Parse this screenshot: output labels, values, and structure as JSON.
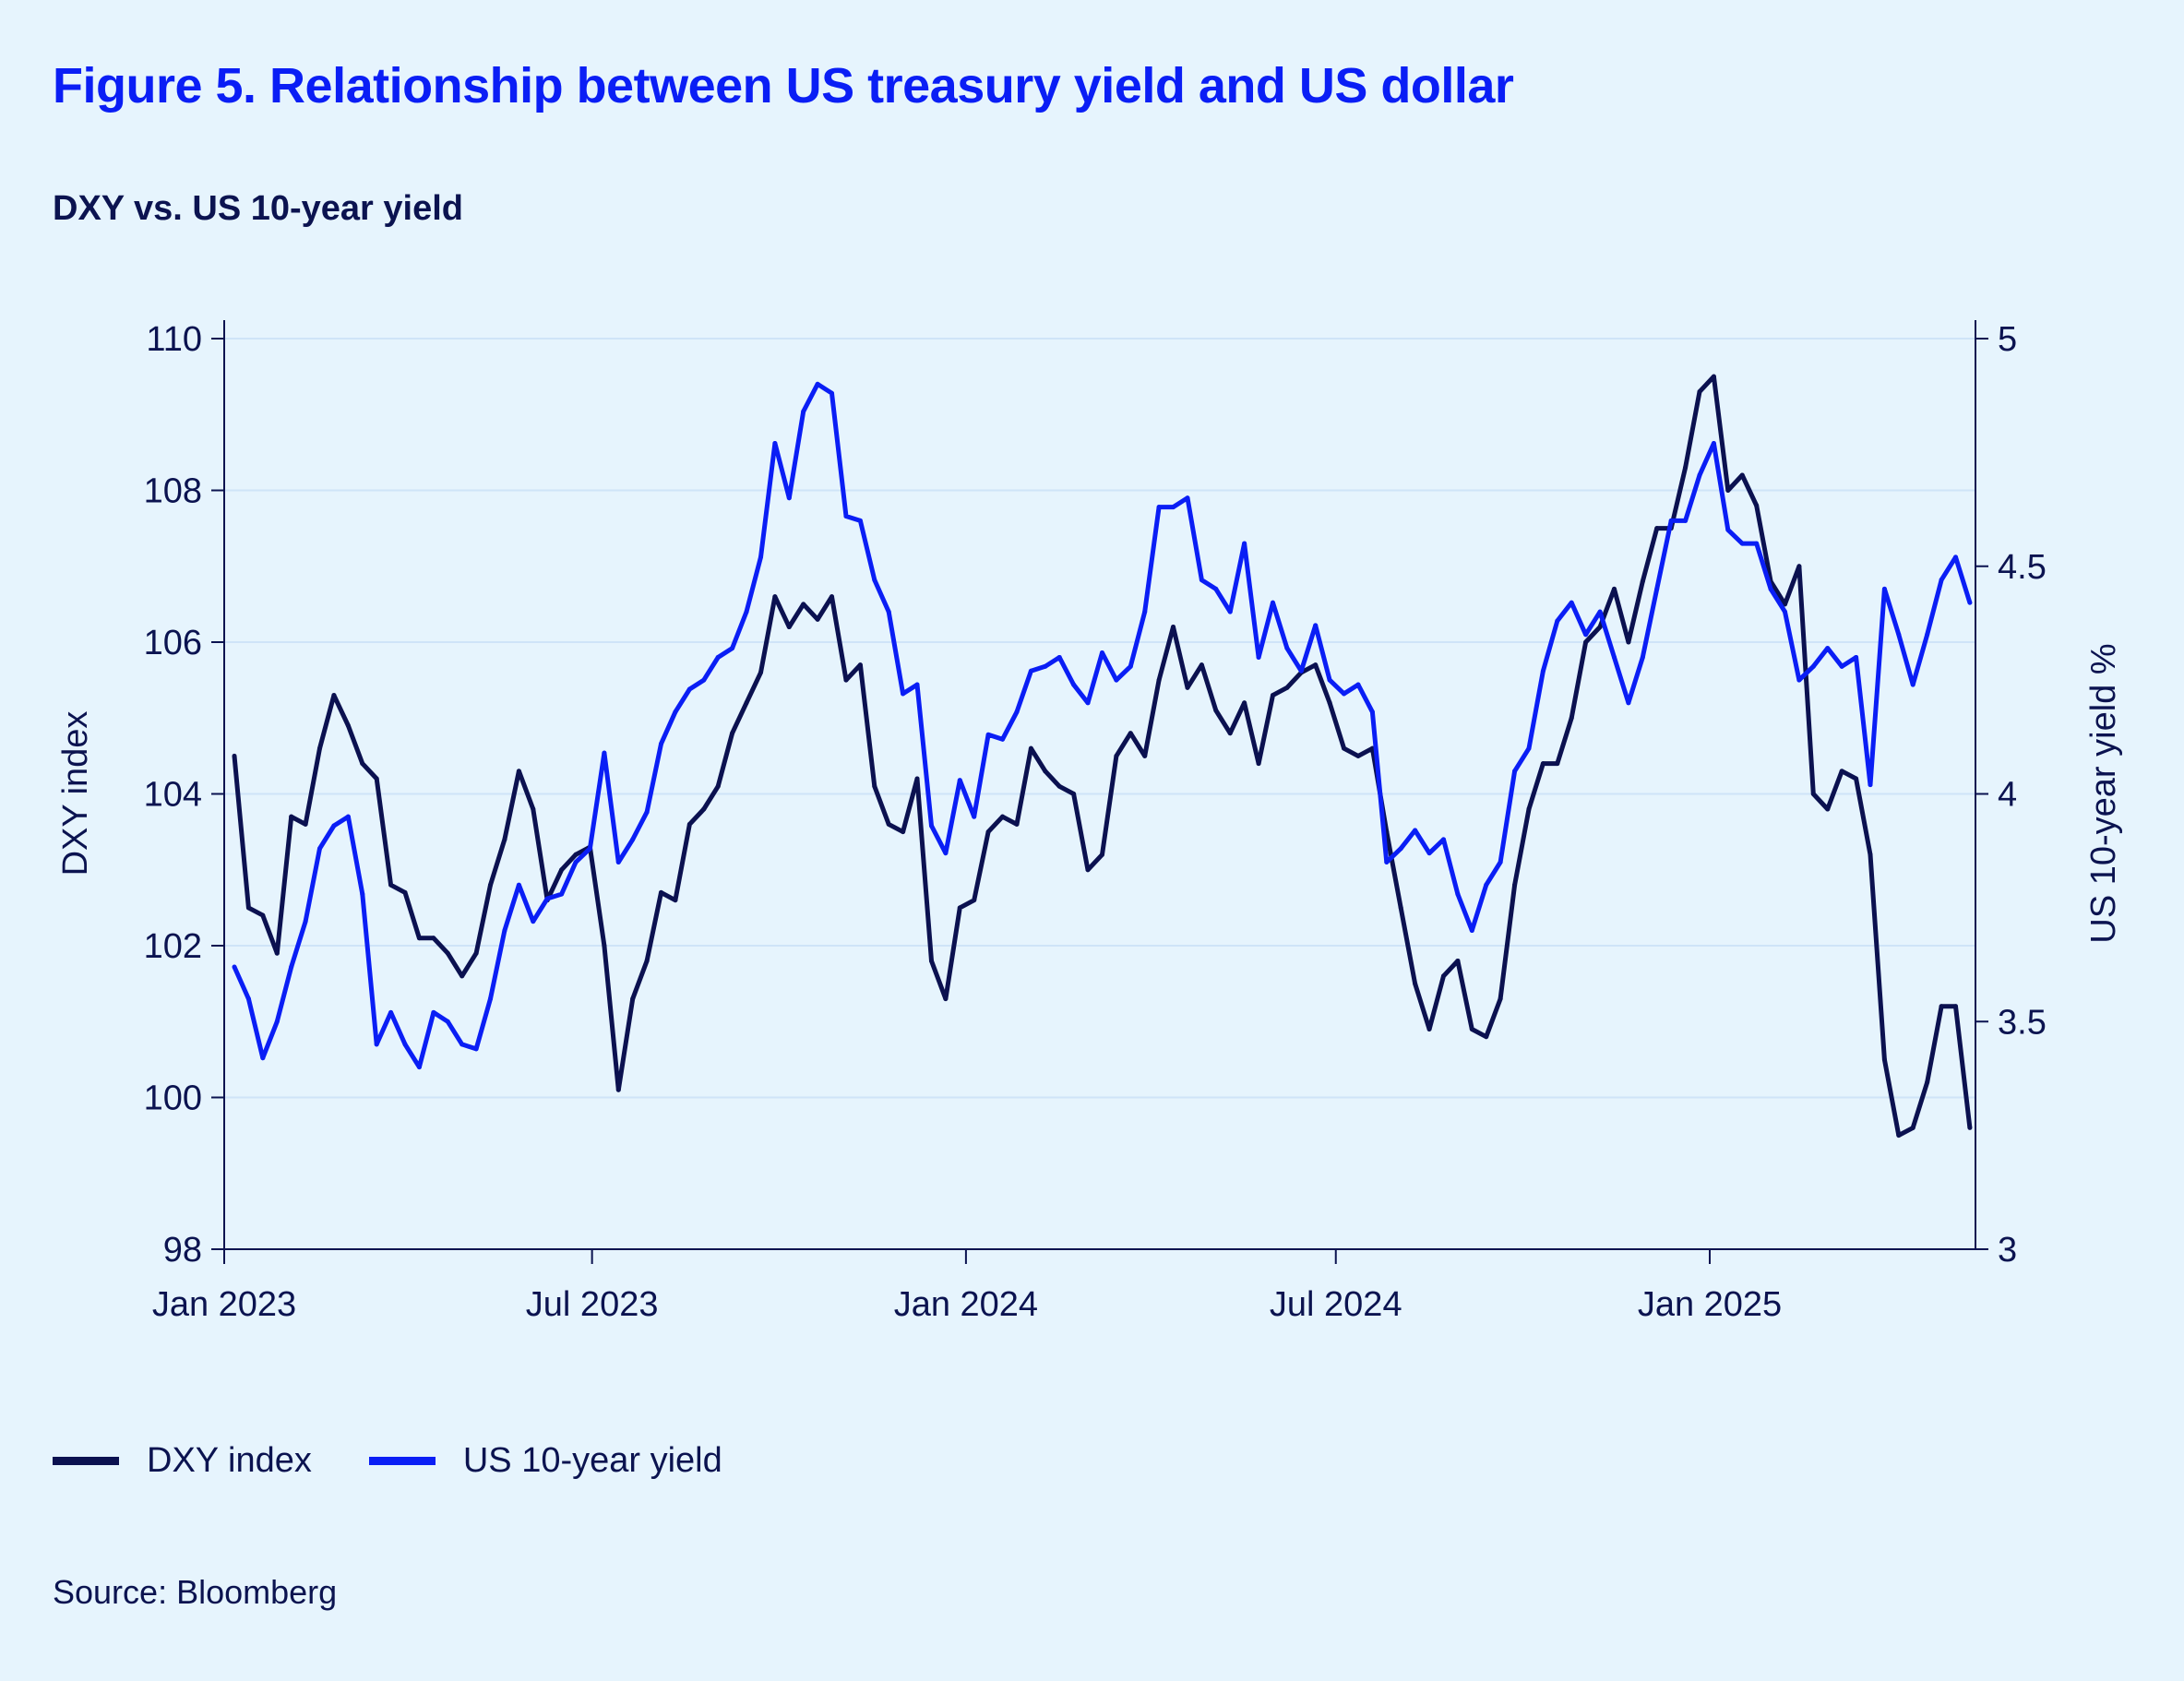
{
  "title": "Figure 5. Relationship between US treasury yield and US dollar",
  "subtitle": "DXY vs. US 10-year yield",
  "source": "Source: Bloomberg",
  "colors": {
    "background": "#e6f4fd",
    "dxy": "#0b1150",
    "yield": "#0a1ef5",
    "grid": "#cfe4f8",
    "axis": "#0b1350"
  },
  "chart_data": {
    "type": "line",
    "xlabel": "",
    "ylabel_left": "DXY index",
    "ylabel_right": "US 10-year yield %",
    "ylim_left": [
      98,
      110
    ],
    "ylim_right": [
      3,
      5
    ],
    "yticks_left": [
      "98",
      "100",
      "102",
      "104",
      "106",
      "108",
      "110"
    ],
    "yticks_right": [
      "3",
      "3.5",
      "4",
      "4.5",
      "5"
    ],
    "xticks": [
      {
        "date": "2023-01-01",
        "label": "Jan 2023"
      },
      {
        "date": "2023-07-01",
        "label": "Jul 2023"
      },
      {
        "date": "2024-01-01",
        "label": "Jan 2024"
      },
      {
        "date": "2024-07-01",
        "label": "Jul 2024"
      },
      {
        "date": "2025-01-01",
        "label": "Jan 2025"
      }
    ],
    "grid": true,
    "legend_position": "bottom-left",
    "x": [
      "2023-01-06",
      "2023-01-13",
      "2023-01-20",
      "2023-01-27",
      "2023-02-03",
      "2023-02-10",
      "2023-02-17",
      "2023-02-24",
      "2023-03-03",
      "2023-03-10",
      "2023-03-17",
      "2023-03-24",
      "2023-03-31",
      "2023-04-07",
      "2023-04-14",
      "2023-04-21",
      "2023-04-28",
      "2023-05-05",
      "2023-05-12",
      "2023-05-19",
      "2023-05-26",
      "2023-06-02",
      "2023-06-09",
      "2023-06-16",
      "2023-06-23",
      "2023-06-30",
      "2023-07-07",
      "2023-07-14",
      "2023-07-21",
      "2023-07-28",
      "2023-08-04",
      "2023-08-11",
      "2023-08-18",
      "2023-08-25",
      "2023-09-01",
      "2023-09-08",
      "2023-09-15",
      "2023-09-22",
      "2023-09-29",
      "2023-10-06",
      "2023-10-13",
      "2023-10-20",
      "2023-10-27",
      "2023-11-03",
      "2023-11-10",
      "2023-11-17",
      "2023-11-24",
      "2023-12-01",
      "2023-12-08",
      "2023-12-15",
      "2023-12-22",
      "2023-12-29",
      "2024-01-05",
      "2024-01-12",
      "2024-01-19",
      "2024-01-26",
      "2024-02-02",
      "2024-02-09",
      "2024-02-16",
      "2024-02-23",
      "2024-03-01",
      "2024-03-08",
      "2024-03-15",
      "2024-03-22",
      "2024-03-29",
      "2024-04-05",
      "2024-04-12",
      "2024-04-19",
      "2024-04-26",
      "2024-05-03",
      "2024-05-10",
      "2024-05-17",
      "2024-05-24",
      "2024-05-31",
      "2024-06-07",
      "2024-06-14",
      "2024-06-21",
      "2024-06-28",
      "2024-07-05",
      "2024-07-12",
      "2024-07-19",
      "2024-07-26",
      "2024-08-02",
      "2024-08-09",
      "2024-08-16",
      "2024-08-23",
      "2024-08-30",
      "2024-09-06",
      "2024-09-13",
      "2024-09-20",
      "2024-09-27",
      "2024-10-04",
      "2024-10-11",
      "2024-10-18",
      "2024-10-25",
      "2024-11-01",
      "2024-11-08",
      "2024-11-15",
      "2024-11-22",
      "2024-11-29",
      "2024-12-06",
      "2024-12-13",
      "2024-12-20",
      "2024-12-27",
      "2025-01-03",
      "2025-01-10",
      "2025-01-17",
      "2025-01-24",
      "2025-01-31",
      "2025-02-07",
      "2025-02-14",
      "2025-02-21",
      "2025-02-28",
      "2025-03-07",
      "2025-03-14",
      "2025-03-21",
      "2025-03-28",
      "2025-04-04",
      "2025-04-11",
      "2025-04-18",
      "2025-04-25",
      "2025-05-02",
      "2025-05-09"
    ],
    "series": [
      {
        "name": "DXY index",
        "axis": "left",
        "values": [
          104.5,
          102.5,
          102.4,
          101.9,
          103.7,
          103.6,
          104.6,
          105.3,
          104.9,
          104.4,
          104.2,
          102.8,
          102.7,
          102.1,
          102.1,
          101.9,
          101.6,
          101.9,
          102.8,
          103.4,
          104.3,
          103.8,
          102.6,
          103.0,
          103.2,
          103.3,
          102.0,
          100.1,
          101.3,
          101.8,
          102.7,
          102.6,
          103.6,
          103.8,
          104.1,
          104.8,
          105.2,
          105.6,
          106.6,
          106.2,
          106.5,
          106.3,
          106.6,
          105.5,
          105.7,
          104.1,
          103.6,
          103.5,
          104.2,
          101.8,
          101.3,
          102.5,
          102.6,
          103.5,
          103.7,
          103.6,
          104.6,
          104.3,
          104.1,
          104.0,
          103.0,
          103.2,
          104.5,
          104.8,
          104.5,
          105.5,
          106.2,
          105.4,
          105.7,
          105.1,
          104.8,
          105.2,
          104.4,
          105.3,
          105.4,
          105.6,
          105.7,
          105.2,
          104.6,
          104.5,
          104.6,
          103.5,
          102.5,
          101.5,
          100.9,
          101.6,
          101.8,
          100.9,
          100.8,
          101.3,
          102.8,
          103.8,
          104.4,
          104.4,
          105.0,
          106.0,
          106.2,
          106.7,
          106.0,
          106.8,
          107.5,
          107.5,
          108.3,
          109.3,
          109.5,
          108.0,
          108.2,
          107.8,
          106.8,
          106.5,
          107.0,
          104.0,
          103.8,
          104.3,
          104.2,
          103.2,
          100.5,
          99.5,
          99.6,
          100.2,
          101.2,
          101.2,
          99.6
        ]
      },
      {
        "name": "US 10-year yield",
        "axis": "right",
        "values": [
          3.62,
          3.55,
          3.42,
          3.5,
          3.62,
          3.72,
          3.88,
          3.93,
          3.95,
          3.78,
          3.45,
          3.52,
          3.45,
          3.4,
          3.52,
          3.5,
          3.45,
          3.44,
          3.55,
          3.7,
          3.8,
          3.72,
          3.77,
          3.78,
          3.85,
          3.88,
          4.09,
          3.85,
          3.9,
          3.96,
          4.11,
          4.18,
          4.23,
          4.25,
          4.3,
          4.32,
          4.4,
          4.52,
          4.77,
          4.65,
          4.84,
          4.9,
          4.88,
          4.61,
          4.6,
          4.47,
          4.4,
          4.22,
          4.24,
          3.93,
          3.87,
          4.03,
          3.95,
          4.13,
          4.12,
          4.18,
          4.27,
          4.28,
          4.3,
          4.24,
          4.2,
          4.31,
          4.25,
          4.28,
          4.4,
          4.63,
          4.63,
          4.65,
          4.47,
          4.45,
          4.4,
          4.55,
          4.3,
          4.42,
          4.32,
          4.27,
          4.37,
          4.25,
          4.22,
          4.24,
          4.18,
          3.85,
          3.88,
          3.92,
          3.87,
          3.9,
          3.78,
          3.7,
          3.8,
          3.85,
          4.05,
          4.1,
          4.27,
          4.38,
          4.42,
          4.35,
          4.4,
          4.3,
          4.2,
          4.3,
          4.45,
          4.6,
          4.6,
          4.7,
          4.77,
          4.58,
          4.55,
          4.55,
          4.45,
          4.4,
          4.25,
          4.28,
          4.32,
          4.28,
          4.3,
          4.02,
          4.45,
          4.35,
          4.24,
          4.35,
          4.47,
          4.52,
          4.42
        ]
      }
    ]
  }
}
